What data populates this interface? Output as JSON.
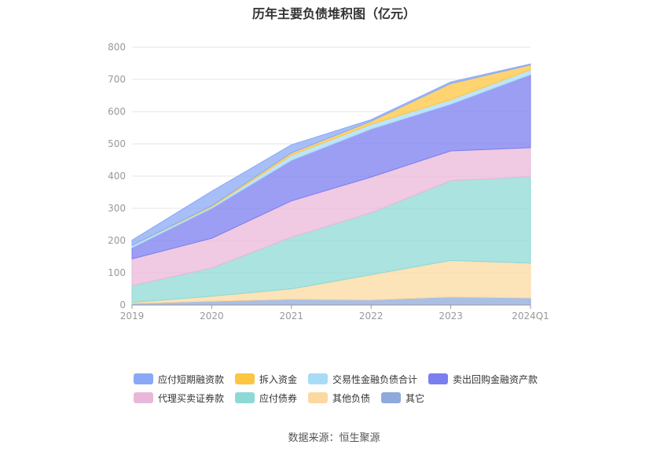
{
  "title": "历年主要负债堆积图（亿元）",
  "source": "数据来源：恒生聚源",
  "chart_data": {
    "type": "area",
    "stacked": true,
    "title": "历年主要负债堆积图（亿元）",
    "categories": [
      "2019",
      "2020",
      "2021",
      "2022",
      "2023",
      "2024Q1"
    ],
    "ylim": [
      0,
      800
    ],
    "yticks": [
      "0",
      "100",
      "200",
      "300",
      "400",
      "500",
      "600",
      "700",
      "800"
    ],
    "grid": true,
    "legend_position": "bottom",
    "series": [
      {
        "name": "其它",
        "color": "#8eaadc",
        "values": [
          5,
          12,
          18,
          16,
          25,
          22
        ]
      },
      {
        "name": "其他负债",
        "color": "#fcd9a0",
        "values": [
          3,
          15,
          32,
          78,
          113,
          108
        ]
      },
      {
        "name": "应付债券",
        "color": "#8ed9d6",
        "values": [
          52,
          88,
          160,
          192,
          248,
          268
        ]
      },
      {
        "name": "代理买卖证券款",
        "color": "#e9b8d8",
        "values": [
          83,
          92,
          113,
          111,
          92,
          90
        ]
      },
      {
        "name": "卖出回购金融资产款",
        "color": "#7b7ef0",
        "values": [
          35,
          93,
          126,
          149,
          145,
          227
        ]
      },
      {
        "name": "交易性金融负债合计",
        "color": "#a8dcf6",
        "values": [
          7,
          5,
          16,
          15,
          14,
          15
        ]
      },
      {
        "name": "拆入资金",
        "color": "#fdc641",
        "values": [
          0,
          3,
          7,
          9,
          50,
          15
        ]
      },
      {
        "name": "应付短期融资款",
        "color": "#8aa8f5",
        "values": [
          16,
          45,
          25,
          5,
          5,
          3
        ]
      }
    ],
    "legend_order": [
      [
        "应付短期融资款",
        "拆入资金",
        "交易性金融负债合计",
        "卖出回购金融资产款"
      ],
      [
        "代理买卖证券款",
        "应付债券",
        "其他负债",
        "其它"
      ]
    ]
  }
}
